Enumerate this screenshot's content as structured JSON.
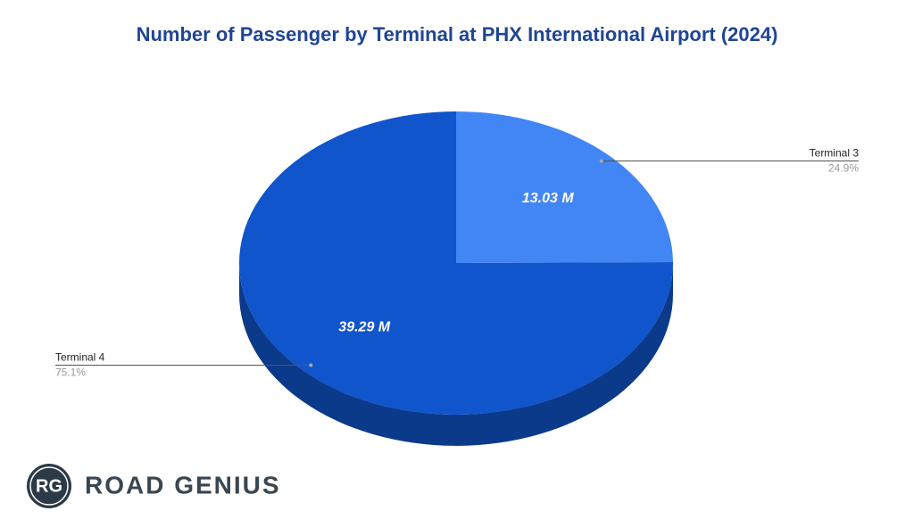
{
  "chart_data": {
    "type": "pie3d",
    "title": "Number of Passenger by Terminal at PHX International Airport (2024)",
    "categories": [
      "Terminal 3",
      "Terminal 4"
    ],
    "values": [
      13.03,
      39.29
    ],
    "value_labels": [
      "13.03 M",
      "39.29 M"
    ],
    "percent_labels": [
      "24.9%",
      "75.1%"
    ],
    "colors": [
      "#4285f4",
      "#1155cc"
    ]
  },
  "logo": {
    "badge": "RG",
    "text": "ROAD GENIUS"
  }
}
